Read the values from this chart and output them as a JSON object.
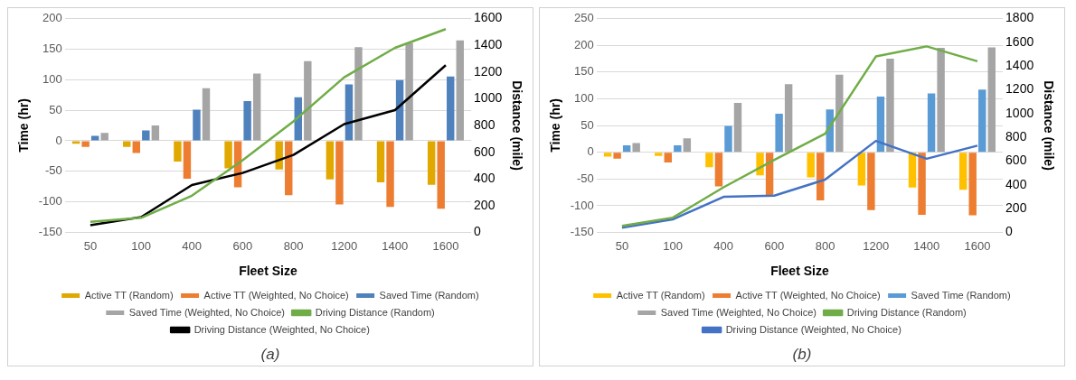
{
  "chart_data": [
    {
      "type": "bar",
      "xlabel": "Fleet Size",
      "ylabel": "Time (hr)",
      "y2label": "Distance (mile)",
      "categories": [
        "50",
        "100",
        "400",
        "600",
        "800",
        "1200",
        "1400",
        "1600"
      ],
      "ylim": [
        -150,
        200
      ],
      "yticks": [
        -150,
        -100,
        -50,
        0,
        50,
        100,
        150,
        200
      ],
      "y2lim": [
        0,
        1600
      ],
      "y2ticks": [
        0,
        200,
        400,
        600,
        800,
        1000,
        1200,
        1400,
        1600
      ],
      "grid": "y",
      "legend": "bottom",
      "marker": "none",
      "annotations": [
        "(a)"
      ],
      "series": [
        {
          "name": "Active TT (Random)",
          "color": "#e0a800",
          "values": [
            -5,
            -10,
            -34,
            -45,
            -47,
            -63,
            -68,
            -72
          ]
        },
        {
          "name": "Active TT (Weighted, No Choice)",
          "color": "#ed7d31",
          "values": [
            -10,
            -20,
            -62,
            -76,
            -89,
            -104,
            -108,
            -111
          ]
        },
        {
          "name": "Saved Time (Random)",
          "color": "#4f81bd",
          "values": [
            8,
            17,
            51,
            65,
            71,
            92,
            99,
            105
          ]
        },
        {
          "name": "Saved Time (Weighted, No Choice)",
          "color": "#a5a5a5",
          "values": [
            13,
            25,
            86,
            110,
            130,
            153,
            160,
            164
          ]
        },
        {
          "name": "Driving Distance (Random)",
          "type": "line",
          "axis": "y2",
          "color": "#70ad47",
          "values": [
            80,
            110,
            275,
            540,
            830,
            1160,
            1380,
            1520
          ]
        },
        {
          "name": "Driving Distance (Weighted, No Choice)",
          "type": "line",
          "axis": "y2",
          "color": "#000000",
          "values": [
            55,
            115,
            355,
            445,
            580,
            810,
            915,
            1250
          ]
        }
      ]
    },
    {
      "type": "bar",
      "xlabel": "Fleet Size",
      "ylabel": "Time (hr)",
      "y2label": "Distance (mile)",
      "categories": [
        "50",
        "100",
        "400",
        "600",
        "800",
        "1200",
        "1400",
        "1600"
      ],
      "ylim": [
        -150,
        250
      ],
      "yticks": [
        -150,
        -100,
        -50,
        0,
        50,
        100,
        150,
        200,
        250
      ],
      "y2lim": [
        0,
        1800
      ],
      "y2ticks": [
        0,
        200,
        400,
        600,
        800,
        1000,
        1200,
        1400,
        1600,
        1800
      ],
      "grid": "y",
      "legend": "bottom",
      "marker": "none",
      "annotations": [
        "(b)"
      ],
      "series": [
        {
          "name": "Active TT (Random)",
          "color": "#ffc000",
          "values": [
            -8,
            -7,
            -28,
            -43,
            -47,
            -62,
            -66,
            -70
          ]
        },
        {
          "name": "Active TT (Weighted, No Choice)",
          "color": "#ed7d31",
          "values": [
            -12,
            -19,
            -64,
            -80,
            -90,
            -108,
            -117,
            -118
          ]
        },
        {
          "name": "Saved Time (Random)",
          "color": "#5b9bd5",
          "values": [
            13,
            13,
            49,
            72,
            80,
            104,
            110,
            117
          ]
        },
        {
          "name": "Saved Time (Weighted, No Choice)",
          "color": "#a5a5a5",
          "values": [
            17,
            26,
            92,
            127,
            145,
            175,
            195,
            196
          ]
        },
        {
          "name": "Driving Distance (Random)",
          "type": "line",
          "axis": "y2",
          "color": "#70ad47",
          "values": [
            55,
            125,
            380,
            610,
            830,
            1480,
            1565,
            1440
          ]
        },
        {
          "name": "Driving Distance (Weighted, No Choice)",
          "type": "line",
          "axis": "y2",
          "color": "#4472c4",
          "values": [
            40,
            110,
            300,
            310,
            445,
            770,
            620,
            730
          ]
        }
      ]
    }
  ]
}
